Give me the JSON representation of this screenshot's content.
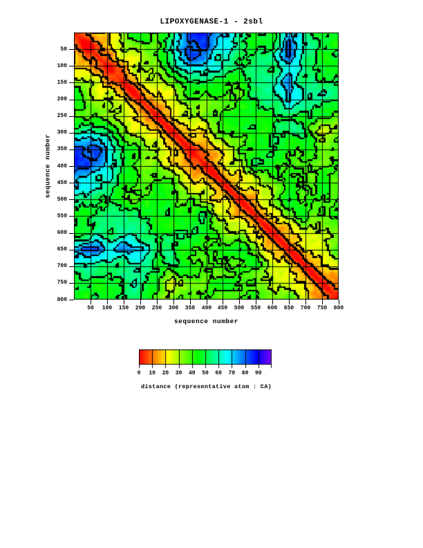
{
  "chart_data": {
    "type": "heatmap",
    "title": "LIPOXYGENASE-1 - 2sbl",
    "xlabel": "sequence number",
    "ylabel": "sequence number",
    "x_range": [
      1,
      800
    ],
    "y_range": [
      1,
      800
    ],
    "x_ticks": [
      50,
      100,
      150,
      200,
      250,
      300,
      350,
      400,
      450,
      500,
      550,
      600,
      650,
      700,
      750,
      800
    ],
    "y_ticks": [
      50,
      100,
      150,
      200,
      250,
      300,
      350,
      400,
      450,
      500,
      550,
      600,
      650,
      700,
      750,
      800
    ],
    "grid_interval": 50,
    "value_label": "distance (representative atom : CA)",
    "colorbar": {
      "min": 0,
      "max": 100,
      "tick_step": 10,
      "tick_labels": [
        0,
        10,
        20,
        30,
        40,
        50,
        60,
        70,
        80,
        90
      ],
      "color_stops": [
        "#ff0000",
        "#ff8800",
        "#ffee00",
        "#88ff00",
        "#11ff00",
        "#00ff66",
        "#00ffdd",
        "#00aaff",
        "#0033ff",
        "#5500ff",
        "#9900ff"
      ]
    },
    "coarse_block_size": 50,
    "coarse_distance_matrix": [
      [
        4,
        18,
        28,
        30,
        36,
        44,
        62,
        78,
        75,
        60,
        48,
        50,
        52,
        80,
        58,
        50,
        48
      ],
      [
        18,
        4,
        18,
        28,
        30,
        40,
        66,
        82,
        78,
        62,
        50,
        55,
        54,
        84,
        60,
        52,
        50
      ],
      [
        28,
        18,
        4,
        18,
        28,
        34,
        60,
        74,
        72,
        58,
        47,
        50,
        50,
        78,
        56,
        48,
        46
      ],
      [
        30,
        28,
        18,
        4,
        18,
        28,
        34,
        55,
        54,
        46,
        44,
        46,
        48,
        70,
        48,
        44,
        46
      ],
      [
        36,
        30,
        28,
        18,
        4,
        18,
        28,
        45,
        46,
        48,
        44,
        45,
        46,
        58,
        48,
        46,
        44
      ],
      [
        44,
        40,
        34,
        28,
        18,
        4,
        18,
        30,
        36,
        40,
        44,
        46,
        48,
        50,
        44,
        44,
        44
      ],
      [
        62,
        66,
        60,
        34,
        28,
        18,
        4,
        18,
        28,
        38,
        42,
        44,
        46,
        48,
        46,
        34,
        46
      ],
      [
        78,
        82,
        74,
        55,
        45,
        30,
        18,
        4,
        18,
        30,
        40,
        44,
        46,
        44,
        46,
        42,
        44
      ],
      [
        75,
        78,
        72,
        54,
        46,
        36,
        28,
        18,
        4,
        18,
        32,
        42,
        44,
        36,
        44,
        40,
        42
      ],
      [
        60,
        62,
        58,
        46,
        48,
        40,
        38,
        30,
        18,
        4,
        18,
        30,
        33,
        42,
        44,
        46,
        44
      ],
      [
        48,
        50,
        47,
        44,
        44,
        44,
        42,
        40,
        32,
        18,
        4,
        18,
        32,
        50,
        42,
        44,
        46
      ],
      [
        50,
        55,
        50,
        46,
        45,
        46,
        44,
        44,
        42,
        30,
        18,
        4,
        18,
        32,
        52,
        42,
        44
      ],
      [
        52,
        54,
        50,
        48,
        46,
        48,
        46,
        46,
        44,
        33,
        32,
        18,
        4,
        18,
        30,
        38,
        40
      ],
      [
        80,
        84,
        78,
        70,
        58,
        50,
        48,
        44,
        36,
        42,
        50,
        32,
        18,
        4,
        18,
        28,
        36
      ],
      [
        58,
        60,
        56,
        48,
        48,
        44,
        46,
        46,
        44,
        44,
        42,
        52,
        30,
        18,
        4,
        18,
        24
      ],
      [
        50,
        52,
        48,
        44,
        46,
        44,
        34,
        42,
        40,
        46,
        44,
        42,
        38,
        28,
        18,
        4,
        18
      ],
      [
        48,
        50,
        46,
        46,
        44,
        44,
        46,
        44,
        42,
        44,
        46,
        44,
        40,
        36,
        24,
        18,
        4
      ]
    ]
  }
}
